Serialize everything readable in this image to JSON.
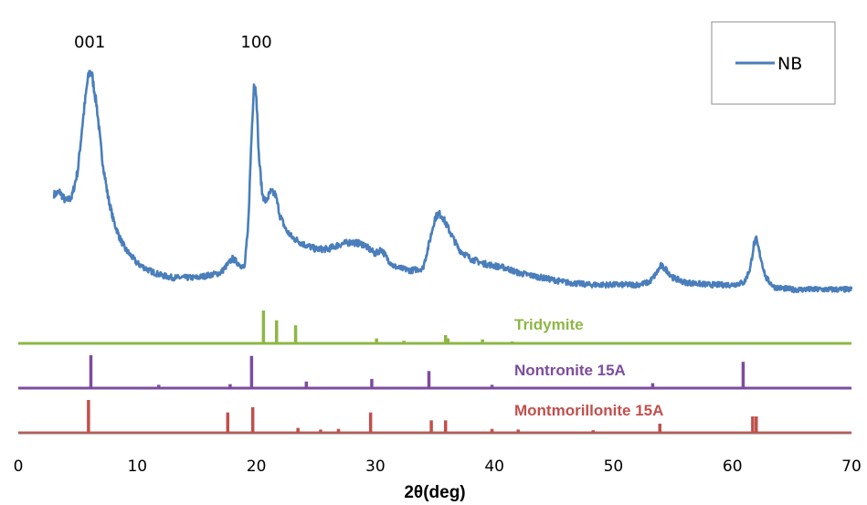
{
  "chart_data": {
    "type": "line",
    "title": "",
    "xlabel": "2θ(deg)",
    "ylabel": "",
    "xlim": [
      0,
      70
    ],
    "x_ticks": [
      0,
      10,
      20,
      30,
      40,
      50,
      60,
      70
    ],
    "grid": false,
    "legend": {
      "placement": "top-right",
      "entries": [
        "NB"
      ]
    },
    "series": [
      {
        "name": "NB",
        "color": "#4a7ebb",
        "x": [
          3,
          3.5,
          4,
          4.5,
          5,
          5.4,
          5.8,
          6.0,
          6.2,
          6.6,
          7,
          7.5,
          8,
          8.5,
          9,
          9.5,
          10,
          11,
          12,
          13,
          14,
          15,
          16,
          17,
          17.5,
          18,
          18.5,
          19,
          19.3,
          19.6,
          19.8,
          20.0,
          20.2,
          20.5,
          20.8,
          21.2,
          21.6,
          22,
          22.5,
          23,
          24,
          25,
          26,
          27,
          28,
          29,
          30,
          30.5,
          31,
          31.5,
          32,
          33,
          34,
          34.5,
          35,
          35.3,
          35.6,
          36,
          36.5,
          37,
          38,
          39,
          40,
          41,
          42,
          44,
          46,
          48,
          50,
          52,
          53,
          53.5,
          54,
          54.5,
          55,
          56,
          58,
          60,
          61,
          61.5,
          61.8,
          62,
          62.3,
          62.8,
          63.5,
          65,
          67,
          70
        ],
        "y": [
          0.45,
          0.46,
          0.42,
          0.44,
          0.55,
          0.75,
          0.92,
          0.97,
          0.95,
          0.82,
          0.62,
          0.45,
          0.34,
          0.27,
          0.22,
          0.19,
          0.16,
          0.13,
          0.11,
          0.1,
          0.1,
          0.1,
          0.11,
          0.12,
          0.15,
          0.18,
          0.16,
          0.14,
          0.3,
          0.7,
          0.92,
          0.88,
          0.62,
          0.45,
          0.42,
          0.46,
          0.45,
          0.36,
          0.3,
          0.27,
          0.24,
          0.22,
          0.22,
          0.24,
          0.25,
          0.24,
          0.2,
          0.22,
          0.18,
          0.15,
          0.14,
          0.13,
          0.14,
          0.24,
          0.35,
          0.37,
          0.36,
          0.32,
          0.27,
          0.22,
          0.18,
          0.16,
          0.15,
          0.14,
          0.12,
          0.1,
          0.08,
          0.07,
          0.07,
          0.07,
          0.08,
          0.11,
          0.15,
          0.13,
          0.1,
          0.08,
          0.07,
          0.07,
          0.08,
          0.14,
          0.24,
          0.26,
          0.2,
          0.1,
          0.06,
          0.05,
          0.05,
          0.05
        ]
      }
    ],
    "annotations": [
      {
        "text": "001",
        "x": 6.0
      },
      {
        "text": "100",
        "x": 20.0
      }
    ],
    "references": [
      {
        "name": "Tridymite",
        "color": "#8db744",
        "x": [
          20.6,
          21.7,
          23.3,
          30.1,
          32.4,
          35.9,
          36.1,
          39.0,
          41.5
        ],
        "intensity": [
          1.0,
          0.7,
          0.55,
          0.15,
          0.08,
          0.25,
          0.15,
          0.12,
          0.06
        ]
      },
      {
        "name": "Nontronite 15A",
        "color": "#7d4c9f",
        "x": [
          6.1,
          11.8,
          17.8,
          19.6,
          24.2,
          29.7,
          34.5,
          39.8,
          53.3,
          60.9
        ],
        "intensity": [
          1.0,
          0.1,
          0.12,
          0.98,
          0.2,
          0.28,
          0.52,
          0.1,
          0.15,
          0.8
        ]
      },
      {
        "name": "Montmorillonite 15A",
        "color": "#c0504d",
        "x": [
          5.9,
          17.6,
          19.7,
          23.5,
          25.4,
          26.9,
          29.6,
          34.7,
          35.9,
          39.8,
          42.0,
          48.3,
          53.9,
          61.7,
          62.0
        ],
        "intensity": [
          1.0,
          0.62,
          0.78,
          0.15,
          0.1,
          0.12,
          0.62,
          0.38,
          0.38,
          0.12,
          0.1,
          0.08,
          0.28,
          0.5,
          0.5
        ]
      }
    ]
  }
}
